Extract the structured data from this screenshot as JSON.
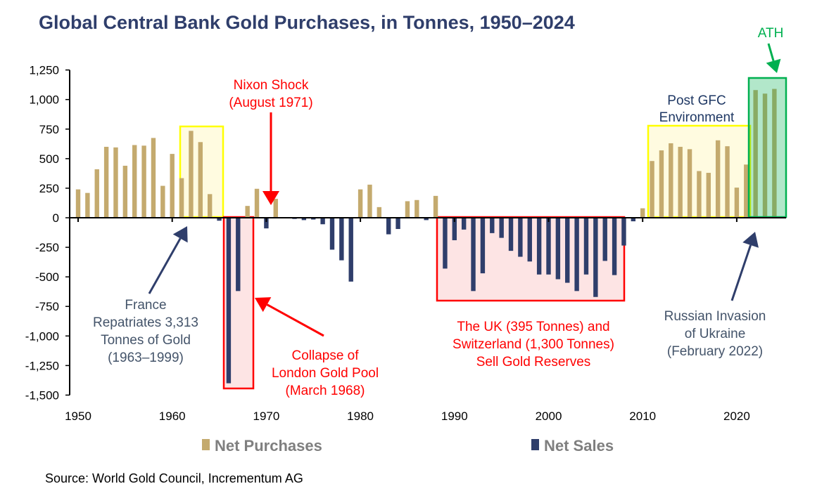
{
  "chart_data": {
    "type": "bar",
    "title": "Global Central Bank Gold Purchases, in Tonnes, 1950–2024",
    "xlabel": "",
    "ylabel": "",
    "ylim": [
      -1500,
      1250
    ],
    "yticks": [
      "1,250",
      "1,000",
      "750",
      "500",
      "250",
      "0",
      "-250",
      "-500",
      "-750",
      "-1,000",
      "-1,250",
      "-1,500"
    ],
    "ytick_values": [
      1250,
      1000,
      750,
      500,
      250,
      0,
      -250,
      -500,
      -750,
      -1000,
      -1250,
      -1500
    ],
    "xticks": [
      "1950",
      "1960",
      "1970",
      "1980",
      "1990",
      "2000",
      "2010",
      "2020"
    ],
    "xtick_values": [
      1950,
      1960,
      1970,
      1980,
      1990,
      2000,
      2010,
      2020
    ],
    "x": [
      1950,
      1951,
      1952,
      1953,
      1954,
      1955,
      1956,
      1957,
      1958,
      1959,
      1960,
      1961,
      1962,
      1963,
      1964,
      1965,
      1966,
      1967,
      1968,
      1969,
      1970,
      1971,
      1972,
      1973,
      1974,
      1975,
      1976,
      1977,
      1978,
      1979,
      1980,
      1981,
      1982,
      1983,
      1984,
      1985,
      1986,
      1987,
      1988,
      1989,
      1990,
      1991,
      1992,
      1993,
      1994,
      1995,
      1996,
      1997,
      1998,
      1999,
      2000,
      2001,
      2002,
      2003,
      2004,
      2005,
      2006,
      2007,
      2008,
      2009,
      2010,
      2011,
      2012,
      2013,
      2014,
      2015,
      2016,
      2017,
      2018,
      2019,
      2020,
      2021,
      2022,
      2023,
      2024
    ],
    "values": [
      240,
      210,
      410,
      600,
      595,
      440,
      615,
      610,
      675,
      270,
      540,
      335,
      735,
      640,
      200,
      -25,
      -1400,
      -620,
      100,
      245,
      -90,
      160,
      0,
      -10,
      -20,
      -15,
      -55,
      -270,
      -360,
      -540,
      240,
      280,
      90,
      -140,
      -95,
      140,
      150,
      -20,
      185,
      -430,
      -190,
      -100,
      -620,
      -470,
      -130,
      -170,
      -280,
      -330,
      -370,
      -480,
      -480,
      -520,
      -550,
      -620,
      -480,
      -670,
      -365,
      -485,
      -235,
      -30,
      80,
      480,
      570,
      630,
      600,
      580,
      395,
      380,
      655,
      605,
      255,
      450,
      1080,
      1050,
      1090
    ],
    "legend": [
      {
        "name": "Net Purchases",
        "color": "#c4aa6e"
      },
      {
        "name": "Net Sales",
        "color": "#2f3e6b"
      }
    ],
    "legend_placement": "bottom",
    "grid": false,
    "annotations": {
      "nixon": [
        "Nixon Shock",
        "(August 1971)"
      ],
      "france": [
        "France",
        "Repatriates 3,313",
        "Tonnes of Gold",
        "(1963–1999)"
      ],
      "collapse": [
        "Collapse of",
        "London Gold Pool",
        "(March 1968)"
      ],
      "uk": [
        "The UK (395 Tonnes) and",
        "Switzerland (1,300 Tonnes)",
        "Sell Gold Reserves"
      ],
      "gfc": [
        "Post GFC",
        "Environment"
      ],
      "russia": [
        "Russian Invasion",
        "of Ukraine",
        "(February 2022)"
      ],
      "ath": "ATH"
    },
    "colors": {
      "title": "#2f3e6b",
      "red": "#ff0000",
      "green": "#00b050",
      "yellow": "#ffff00"
    }
  },
  "source": "Source: World Gold Council, Incrementum AG"
}
